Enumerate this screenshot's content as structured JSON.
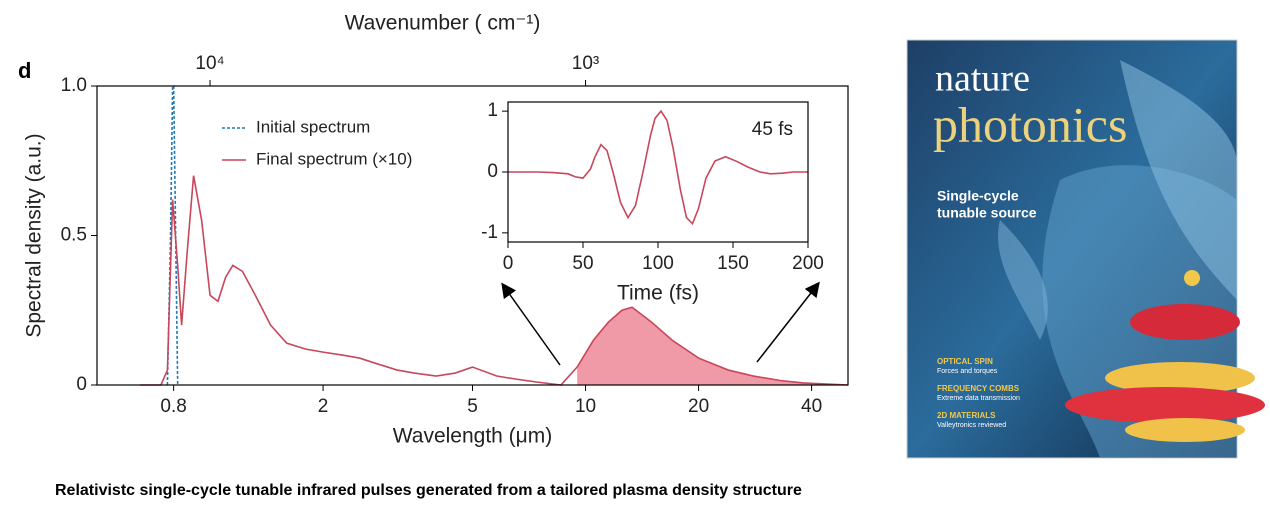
{
  "chart_data": [
    {
      "type": "line",
      "panel_label": "d",
      "x_label": "Wavelength (μm)",
      "y_label": "Spectral density (a.u.)",
      "x2_label": "Wavenumber ( cm⁻¹)",
      "xscale": "log",
      "xlim": [
        0.5,
        50
      ],
      "xticks": [
        0.8,
        2,
        5,
        10,
        20,
        40
      ],
      "x2scale": "log",
      "x2lim": [
        20000,
        200
      ],
      "x2ticks": [
        {
          "value": 10000,
          "label": "10⁴"
        },
        {
          "value": 1000,
          "label": "10³"
        }
      ],
      "ylim": [
        0,
        1
      ],
      "yticks": [
        0,
        0.5,
        {
          "value": 1,
          "label": "1.0"
        }
      ],
      "legend": "upper left",
      "series": [
        {
          "name": "Initial spectrum",
          "color": "#1f77b4",
          "linestyle": "dashed",
          "x": [
            0.77,
            0.785,
            0.795,
            0.8,
            0.81,
            0.82
          ],
          "values": [
            0,
            0.5,
            1.0,
            1.0,
            0.5,
            0
          ]
        },
        {
          "name": "Final spectrum (×10)",
          "color": "#c8475a",
          "linestyle": "solid",
          "fill_from": 9,
          "fill_color": "#ef9aa6",
          "x": [
            0.65,
            0.74,
            0.77,
            0.795,
            0.82,
            0.84,
            0.87,
            0.904,
            0.95,
            1.0,
            1.05,
            1.1,
            1.15,
            1.22,
            1.32,
            1.45,
            1.6,
            1.8,
            2.0,
            2.25,
            2.5,
            2.8,
            3.15,
            3.5,
            4.0,
            4.5,
            5.0,
            5.8,
            6.5,
            7.4,
            8.6,
            9.5,
            10.5,
            11.5,
            12.5,
            13.3,
            15,
            17,
            20,
            24,
            28,
            33,
            38,
            44,
            50
          ],
          "values": [
            0,
            0,
            0.05,
            0.62,
            0.4,
            0.2,
            0.45,
            0.7,
            0.55,
            0.3,
            0.28,
            0.36,
            0.4,
            0.38,
            0.3,
            0.2,
            0.14,
            0.12,
            0.11,
            0.1,
            0.09,
            0.07,
            0.05,
            0.04,
            0.03,
            0.04,
            0.06,
            0.03,
            0.02,
            0.01,
            0.0,
            0.06,
            0.15,
            0.21,
            0.25,
            0.26,
            0.21,
            0.15,
            0.09,
            0.05,
            0.03,
            0.015,
            0.007,
            0.003,
            0
          ]
        }
      ]
    },
    {
      "type": "line",
      "x_label": "Time (fs)",
      "annotation": "45 fs",
      "xlim": [
        0,
        200
      ],
      "xticks": [
        0,
        50,
        100,
        150,
        200
      ],
      "ylim": [
        -1.15,
        1.15
      ],
      "yticks": [
        -1,
        0,
        1
      ],
      "series": [
        {
          "color": "#c8475a",
          "x": [
            0,
            10,
            20,
            30,
            40,
            45,
            50,
            55,
            58,
            62,
            66,
            70,
            75,
            80,
            85,
            90,
            95,
            98,
            102,
            106,
            110,
            115,
            119,
            123,
            127,
            132,
            138,
            145,
            152,
            160,
            168,
            175,
            183,
            190,
            200
          ],
          "values": [
            0,
            0,
            0,
            -0.01,
            -0.03,
            -0.08,
            -0.1,
            0.05,
            0.25,
            0.45,
            0.35,
            0.0,
            -0.5,
            -0.75,
            -0.55,
            0.0,
            0.6,
            0.88,
            1.0,
            0.85,
            0.4,
            -0.3,
            -0.75,
            -0.85,
            -0.6,
            -0.1,
            0.18,
            0.25,
            0.18,
            0.08,
            0.0,
            -0.03,
            -0.02,
            0.0,
            0
          ]
        }
      ]
    }
  ],
  "cover": {
    "journal_top": "nature",
    "journal": "photonics",
    "headline": [
      "Single-cycle",
      "tunable source"
    ],
    "items": [
      {
        "title": "OPTICAL SPIN",
        "text": "Forces and torques"
      },
      {
        "title": "FREQUENCY COMBS",
        "text": "Extreme data transmission"
      },
      {
        "title": "2D MATERIALS",
        "text": "Valleytronics reviewed"
      }
    ]
  },
  "caption": "Relativistc single-cycle tunable infrared pulses generated from a tailored plasma density structure"
}
